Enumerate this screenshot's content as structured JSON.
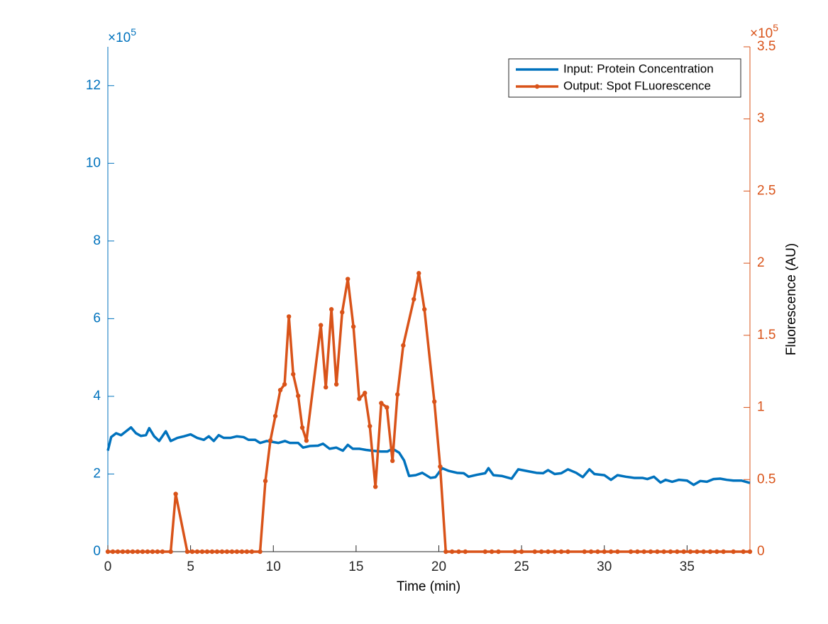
{
  "chart_data": {
    "type": "line",
    "xlabel": "Time (min)",
    "y2label": "Fluorescence (AU)",
    "y_exponent": {
      "base": "×10",
      "power": "5"
    },
    "y2_exponent": {
      "base": "×10",
      "power": "5"
    },
    "xlim": [
      0,
      38.8
    ],
    "xticks": [
      0,
      5,
      10,
      15,
      20,
      25,
      30,
      35
    ],
    "ylim": [
      0,
      13
    ],
    "yticks": [
      0,
      2,
      4,
      6,
      8,
      10,
      12
    ],
    "y2lim": [
      0,
      3.5
    ],
    "y2ticks": [
      0,
      0.5,
      1,
      1.5,
      2,
      2.5,
      3,
      3.5
    ],
    "y_color": "#0072BD",
    "y2_color": "#D95319",
    "legend_loc": "northeast",
    "series": [
      {
        "name": "Input: Protein Concentration",
        "color": "#0072BD",
        "markers": false,
        "x": [
          0,
          0.2,
          0.5,
          0.8,
          1.1,
          1.4,
          1.7,
          2.0,
          2.3,
          2.5,
          2.8,
          3.1,
          3.5,
          3.8,
          4.2,
          4.6,
          5.0,
          5.4,
          5.8,
          6.1,
          6.4,
          6.7,
          7.0,
          7.4,
          7.8,
          8.2,
          8.5,
          8.9,
          9.2,
          9.6,
          9.9,
          10.3,
          10.7,
          11.0,
          11.5,
          11.8,
          12.2,
          12.7,
          13.0,
          13.4,
          13.8,
          14.2,
          14.5,
          14.8,
          15.2,
          15.6,
          16.0,
          16.5,
          16.9,
          17.2,
          17.6,
          17.9,
          18.2,
          18.6,
          19.0,
          19.5,
          19.8,
          20.2,
          20.6,
          21.1,
          21.5,
          21.8,
          22.3,
          22.8,
          23.0,
          23.3,
          23.8,
          24.4,
          24.8,
          25.4,
          25.9,
          26.3,
          26.6,
          27.0,
          27.4,
          27.8,
          28.3,
          28.7,
          29.1,
          29.4,
          30.0,
          30.4,
          30.8,
          31.3,
          31.8,
          32.3,
          32.6,
          33.0,
          33.4,
          33.7,
          34.1,
          34.5,
          35.0,
          35.4,
          35.8,
          36.2,
          36.6,
          37.0,
          37.4,
          37.8,
          38.3,
          38.8
        ],
        "values": [
          2.6,
          2.95,
          3.05,
          3.0,
          3.1,
          3.2,
          3.05,
          2.98,
          3.0,
          3.18,
          2.97,
          2.85,
          3.1,
          2.85,
          2.93,
          2.97,
          3.02,
          2.93,
          2.88,
          2.97,
          2.85,
          3.0,
          2.93,
          2.93,
          2.97,
          2.95,
          2.88,
          2.88,
          2.8,
          2.85,
          2.83,
          2.8,
          2.85,
          2.8,
          2.8,
          2.68,
          2.72,
          2.73,
          2.78,
          2.65,
          2.68,
          2.6,
          2.75,
          2.65,
          2.65,
          2.62,
          2.6,
          2.58,
          2.58,
          2.65,
          2.55,
          2.35,
          1.95,
          1.97,
          2.03,
          1.9,
          1.92,
          2.15,
          2.08,
          2.03,
          2.02,
          1.93,
          1.98,
          2.02,
          2.15,
          1.97,
          1.95,
          1.88,
          2.12,
          2.07,
          2.03,
          2.02,
          2.1,
          2.0,
          2.02,
          2.12,
          2.03,
          1.92,
          2.12,
          2.0,
          1.97,
          1.85,
          1.97,
          1.93,
          1.9,
          1.9,
          1.87,
          1.93,
          1.78,
          1.85,
          1.8,
          1.85,
          1.83,
          1.72,
          1.82,
          1.8,
          1.87,
          1.88,
          1.85,
          1.83,
          1.83,
          1.77
        ]
      },
      {
        "name": "Output: Spot FLuorescence",
        "color": "#D95319",
        "markers": true,
        "axis": "y2",
        "x": [
          0,
          0.3,
          0.6,
          0.9,
          1.2,
          1.5,
          1.8,
          2.1,
          2.4,
          2.7,
          3.0,
          3.3,
          3.8,
          4.1,
          4.8,
          5.1,
          5.4,
          5.7,
          6.0,
          6.3,
          6.6,
          6.9,
          7.2,
          7.5,
          7.8,
          8.1,
          8.4,
          8.7,
          9.2,
          9.52,
          9.82,
          10.12,
          10.42,
          10.68,
          10.94,
          11.2,
          11.5,
          11.75,
          12.0,
          12.87,
          13.17,
          13.51,
          13.81,
          14.16,
          14.5,
          14.84,
          15.19,
          15.53,
          15.83,
          16.17,
          16.52,
          16.86,
          17.2,
          17.5,
          17.85,
          18.49,
          18.79,
          19.13,
          19.73,
          20.08,
          20.42,
          20.8,
          21.2,
          21.6,
          22.8,
          23.2,
          23.6,
          24.6,
          25.0,
          25.8,
          26.2,
          26.6,
          27.0,
          27.4,
          27.8,
          28.8,
          29.2,
          29.6,
          30.0,
          30.4,
          30.8,
          31.6,
          32.0,
          32.4,
          32.8,
          33.2,
          33.6,
          34.0,
          34.4,
          34.8,
          35.2,
          35.6,
          36.0,
          36.4,
          36.8,
          37.2,
          37.8,
          38.4,
          38.8
        ],
        "values": [
          0,
          0,
          0,
          0,
          0,
          0,
          0,
          0,
          0,
          0,
          0,
          0,
          0,
          0.4,
          0,
          0,
          0,
          0,
          0,
          0,
          0,
          0,
          0,
          0,
          0,
          0,
          0,
          0,
          0,
          0.49,
          0.77,
          0.94,
          1.12,
          1.16,
          1.63,
          1.23,
          1.08,
          0.86,
          0.77,
          1.57,
          1.14,
          1.68,
          1.16,
          1.66,
          1.89,
          1.56,
          1.06,
          1.1,
          0.87,
          0.45,
          1.03,
          1.0,
          0.63,
          1.09,
          1.43,
          1.75,
          1.93,
          1.68,
          1.04,
          0.59,
          0,
          0,
          0,
          0,
          0,
          0,
          0,
          0,
          0,
          0,
          0,
          0,
          0,
          0,
          0,
          0,
          0,
          0,
          0,
          0,
          0,
          0,
          0,
          0,
          0,
          0,
          0,
          0,
          0,
          0,
          0,
          0,
          0,
          0,
          0,
          0,
          0,
          0,
          0
        ]
      }
    ]
  }
}
